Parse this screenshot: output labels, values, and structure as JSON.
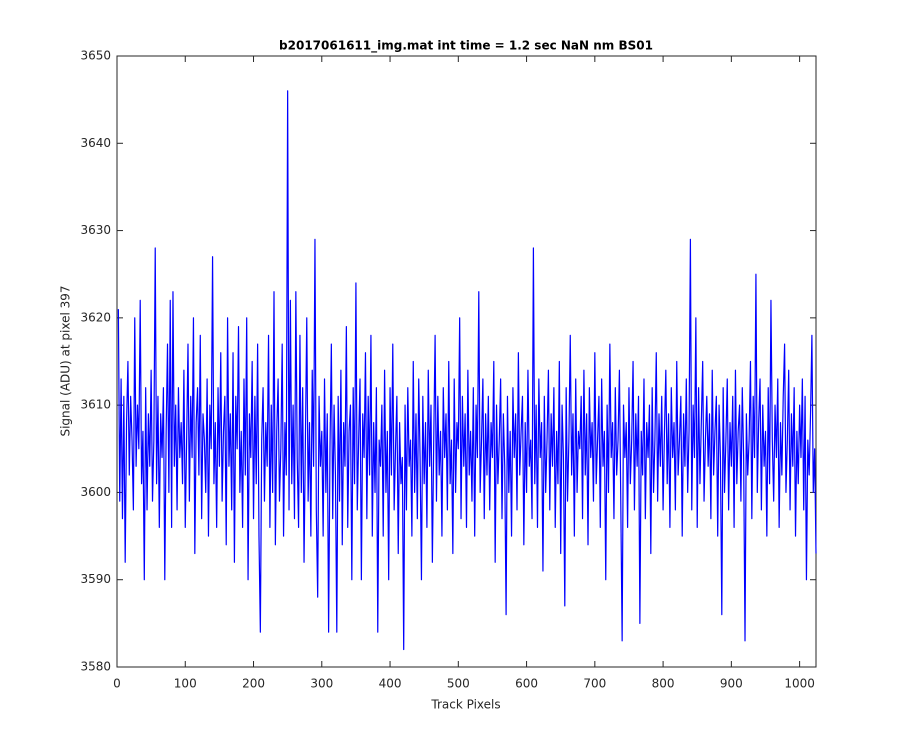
{
  "chart_data": {
    "type": "line",
    "title": "b2017061611_img.mat int time = 1.2 sec  NaN nm BS01",
    "xlabel": "Track Pixels",
    "ylabel": "Signal (ADU) at pixel 397",
    "color": "#0000ff",
    "xlim": [
      0,
      1024
    ],
    "xticks": [
      0,
      100,
      200,
      300,
      400,
      500,
      600,
      700,
      800,
      900,
      1000
    ],
    "ylim": [
      3580,
      3650
    ],
    "yticks": [
      3580,
      3590,
      3600,
      3610,
      3620,
      3630,
      3640,
      3650
    ],
    "x": [
      2,
      4,
      6,
      8,
      10,
      12,
      14,
      16,
      18,
      20,
      22,
      24,
      26,
      28,
      30,
      32,
      34,
      36,
      38,
      40,
      42,
      44,
      46,
      48,
      50,
      52,
      54,
      56,
      58,
      60,
      62,
      64,
      66,
      68,
      70,
      72,
      74,
      76,
      78,
      80,
      82,
      84,
      86,
      88,
      90,
      92,
      94,
      96,
      98,
      100,
      102,
      104,
      106,
      108,
      110,
      112,
      114,
      116,
      118,
      120,
      122,
      124,
      126,
      128,
      130,
      132,
      134,
      136,
      138,
      140,
      142,
      144,
      146,
      148,
      150,
      152,
      154,
      156,
      158,
      160,
      162,
      164,
      166,
      168,
      170,
      172,
      174,
      176,
      178,
      180,
      182,
      184,
      186,
      188,
      190,
      192,
      194,
      196,
      198,
      200,
      202,
      204,
      206,
      208,
      210,
      212,
      214,
      216,
      218,
      220,
      222,
      224,
      226,
      228,
      230,
      232,
      234,
      236,
      238,
      240,
      242,
      244,
      246,
      248,
      250,
      252,
      254,
      256,
      258,
      260,
      262,
      264,
      266,
      268,
      270,
      272,
      274,
      276,
      278,
      280,
      282,
      284,
      286,
      288,
      290,
      292,
      294,
      296,
      298,
      300,
      302,
      304,
      306,
      308,
      310,
      312,
      314,
      316,
      318,
      320,
      322,
      324,
      326,
      328,
      330,
      332,
      334,
      336,
      338,
      340,
      342,
      344,
      346,
      348,
      350,
      352,
      354,
      356,
      358,
      360,
      362,
      364,
      366,
      368,
      370,
      372,
      374,
      376,
      378,
      380,
      382,
      384,
      386,
      388,
      390,
      392,
      394,
      396,
      398,
      400,
      402,
      404,
      406,
      408,
      410,
      412,
      414,
      416,
      418,
      420,
      422,
      424,
      426,
      428,
      430,
      432,
      434,
      436,
      438,
      440,
      442,
      444,
      446,
      448,
      450,
      452,
      454,
      456,
      458,
      460,
      462,
      464,
      466,
      468,
      470,
      472,
      474,
      476,
      478,
      480,
      482,
      484,
      486,
      488,
      490,
      492,
      494,
      496,
      498,
      500,
      502,
      504,
      506,
      508,
      510,
      512,
      514,
      516,
      518,
      520,
      522,
      524,
      526,
      528,
      530,
      532,
      534,
      536,
      538,
      540,
      542,
      544,
      546,
      548,
      550,
      552,
      554,
      556,
      558,
      560,
      562,
      564,
      566,
      568,
      570,
      572,
      574,
      576,
      578,
      580,
      582,
      584,
      586,
      588,
      590,
      592,
      594,
      596,
      598,
      600,
      602,
      604,
      606,
      608,
      610,
      612,
      614,
      616,
      618,
      620,
      622,
      624,
      626,
      628,
      630,
      632,
      634,
      636,
      638,
      640,
      642,
      644,
      646,
      648,
      650,
      652,
      654,
      656,
      658,
      660,
      662,
      664,
      666,
      668,
      670,
      672,
      674,
      676,
      678,
      680,
      682,
      684,
      686,
      688,
      690,
      692,
      694,
      696,
      698,
      700,
      702,
      704,
      706,
      708,
      710,
      712,
      714,
      716,
      718,
      720,
      722,
      724,
      726,
      728,
      730,
      732,
      734,
      736,
      738,
      740,
      742,
      744,
      746,
      748,
      750,
      752,
      754,
      756,
      758,
      760,
      762,
      764,
      766,
      768,
      770,
      772,
      774,
      776,
      778,
      780,
      782,
      784,
      786,
      788,
      790,
      792,
      794,
      796,
      798,
      800,
      802,
      804,
      806,
      808,
      810,
      812,
      814,
      816,
      818,
      820,
      822,
      824,
      826,
      828,
      830,
      832,
      834,
      836,
      838,
      840,
      842,
      844,
      846,
      848,
      850,
      852,
      854,
      856,
      858,
      860,
      862,
      864,
      866,
      868,
      870,
      872,
      874,
      876,
      878,
      880,
      882,
      884,
      886,
      888,
      890,
      892,
      894,
      896,
      898,
      900,
      902,
      904,
      906,
      908,
      910,
      912,
      914,
      916,
      918,
      920,
      922,
      924,
      926,
      928,
      930,
      932,
      934,
      936,
      938,
      940,
      942,
      944,
      946,
      948,
      950,
      952,
      954,
      956,
      958,
      960,
      962,
      964,
      966,
      968,
      970,
      972,
      974,
      976,
      978,
      980,
      982,
      984,
      986,
      988,
      990,
      992,
      994,
      996,
      998,
      1000,
      1002,
      1004,
      1006,
      1008,
      1010,
      1012,
      1014,
      1016,
      1018,
      1020,
      1022,
      1024
    ],
    "values": [
      3621,
      3599,
      3613,
      3597,
      3611,
      3592,
      3608,
      3615,
      3602,
      3611,
      3606,
      3598,
      3620,
      3603,
      3610,
      3605,
      3622,
      3601,
      3607,
      3590,
      3612,
      3598,
      3609,
      3603,
      3614,
      3599,
      3606,
      3628,
      3601,
      3611,
      3596,
      3609,
      3604,
      3612,
      3590,
      3607,
      3617,
      3600,
      3622,
      3596,
      3623,
      3603,
      3610,
      3598,
      3612,
      3604,
      3608,
      3601,
      3614,
      3596,
      3606,
      3617,
      3599,
      3611,
      3604,
      3620,
      3593,
      3608,
      3612,
      3602,
      3618,
      3597,
      3609,
      3606,
      3600,
      3613,
      3595,
      3610,
      3605,
      3627,
      3601,
      3608,
      3596,
      3612,
      3603,
      3616,
      3599,
      3607,
      3611,
      3594,
      3620,
      3603,
      3609,
      3598,
      3616,
      3592,
      3611,
      3605,
      3619,
      3600,
      3607,
      3596,
      3613,
      3602,
      3620,
      3590,
      3609,
      3604,
      3615,
      3597,
      3611,
      3601,
      3617,
      3595,
      3584,
      3606,
      3612,
      3599,
      3608,
      3603,
      3618,
      3596,
      3610,
      3600,
      3623,
      3594,
      3607,
      3613,
      3599,
      3605,
      3617,
      3595,
      3608,
      3602,
      3646,
      3598,
      3622,
      3601,
      3610,
      3597,
      3623,
      3604,
      3596,
      3618,
      3600,
      3612,
      3592,
      3606,
      3620,
      3599,
      3608,
      3595,
      3614,
      3603,
      3629,
      3598,
      3588,
      3611,
      3603,
      3607,
      3595,
      3613,
      3600,
      3609,
      3584,
      3605,
      3617,
      3597,
      3610,
      3602,
      3584,
      3611,
      3599,
      3614,
      3594,
      3608,
      3603,
      3619,
      3596,
      3607,
      3610,
      3590,
      3612,
      3601,
      3624,
      3598,
      3606,
      3613,
      3590,
      3609,
      3604,
      3616,
      3597,
      3611,
      3602,
      3618,
      3595,
      3608,
      3600,
      3612,
      3584,
      3606,
      3603,
      3610,
      3595,
      3614,
      3600,
      3607,
      3590,
      3612,
      3602,
      3617,
      3598,
      3605,
      3611,
      3593,
      3608,
      3601,
      3604,
      3582,
      3610,
      3598,
      3612,
      3603,
      3606,
      3595,
      3615,
      3600,
      3609,
      3597,
      3613,
      3604,
      3590,
      3611,
      3601,
      3608,
      3596,
      3614,
      3603,
      3610,
      3592,
      3606,
      3618,
      3599,
      3611,
      3602,
      3607,
      3595,
      3612,
      3604,
      3609,
      3598,
      3615,
      3601,
      3606,
      3593,
      3613,
      3600,
      3608,
      3605,
      3620,
      3597,
      3611,
      3603,
      3609,
      3596,
      3614,
      3602,
      3607,
      3599,
      3612,
      3595,
      3610,
      3604,
      3623,
      3600,
      3606,
      3613,
      3597,
      3609,
      3602,
      3611,
      3598,
      3608,
      3604,
      3615,
      3592,
      3610,
      3601,
      3606,
      3613,
      3597,
      3609,
      3603,
      3586,
      3611,
      3600,
      3607,
      3595,
      3612,
      3604,
      3609,
      3598,
      3616,
      3602,
      3607,
      3611,
      3594,
      3608,
      3600,
      3614,
      3603,
      3606,
      3597,
      3628,
      3601,
      3610,
      3596,
      3613,
      3604,
      3608,
      3591,
      3611,
      3600,
      3606,
      3614,
      3598,
      3609,
      3603,
      3612,
      3596,
      3607,
      3601,
      3615,
      3593,
      3610,
      3604,
      3587,
      3612,
      3599,
      3606,
      3618,
      3602,
      3609,
      3595,
      3613,
      3600,
      3607,
      3605,
      3611,
      3597,
      3614,
      3602,
      3609,
      3594,
      3612,
      3604,
      3608,
      3599,
      3616,
      3601,
      3606,
      3611,
      3596,
      3613,
      3603,
      3607,
      3590,
      3610,
      3600,
      3617,
      3604,
      3608,
      3597,
      3612,
      3602,
      3606,
      3614,
      3599,
      3583,
      3610,
      3604,
      3608,
      3596,
      3612,
      3601,
      3606,
      3615,
      3598,
      3609,
      3603,
      3611,
      3585,
      3607,
      3602,
      3613,
      3597,
      3608,
      3604,
      3610,
      3593,
      3612,
      3600,
      3606,
      3616,
      3599,
      3609,
      3603,
      3611,
      3598,
      3607,
      3614,
      3601,
      3609,
      3596,
      3612,
      3604,
      3608,
      3598,
      3615,
      3602,
      3606,
      3611,
      3595,
      3609,
      3603,
      3613,
      3600,
      3607,
      3629,
      3598,
      3610,
      3604,
      3620,
      3596,
      3612,
      3601,
      3608,
      3615,
      3599,
      3606,
      3611,
      3603,
      3609,
      3597,
      3614,
      3602,
      3607,
      3611,
      3595,
      3610,
      3604,
      3586,
      3612,
      3600,
      3606,
      3613,
      3598,
      3608,
      3603,
      3611,
      3596,
      3614,
      3601,
      3607,
      3610,
      3599,
      3612,
      3604,
      3583,
      3609,
      3602,
      3606,
      3615,
      3597,
      3611,
      3604,
      3625,
      3600,
      3608,
      3613,
      3598,
      3610,
      3603,
      3607,
      3595,
      3612,
      3601,
      3622,
      3606,
      3599,
      3610,
      3604,
      3613,
      3596,
      3608,
      3602,
      3611,
      3617,
      3600,
      3606,
      3614,
      3598,
      3609,
      3603,
      3612,
      3595,
      3607,
      3601,
      3610,
      3604,
      3613,
      3598,
      3611,
      3590,
      3606,
      3602,
      3609,
      3618,
      3600,
      3605,
      3593
    ]
  }
}
